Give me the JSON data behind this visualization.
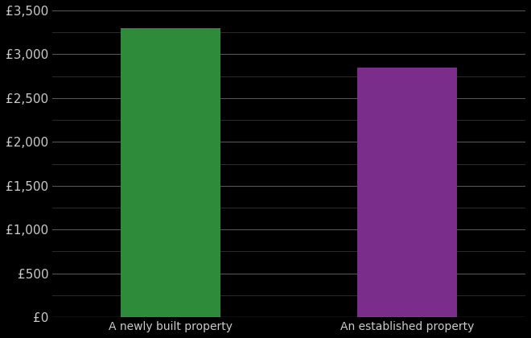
{
  "categories": [
    "A newly built property",
    "An established property"
  ],
  "values": [
    3300,
    2850
  ],
  "bar_colors": [
    "#2e8b3a",
    "#7b2d8b"
  ],
  "background_color": "#000000",
  "text_color": "#cccccc",
  "grid_color_major": "#555555",
  "grid_color_minor": "#333333",
  "ylim": [
    0,
    3500
  ],
  "yticks": [
    0,
    500,
    1000,
    1500,
    2000,
    2500,
    3000,
    3500
  ],
  "bar_width": 0.42,
  "tick_fontsize": 11,
  "label_fontsize": 10
}
